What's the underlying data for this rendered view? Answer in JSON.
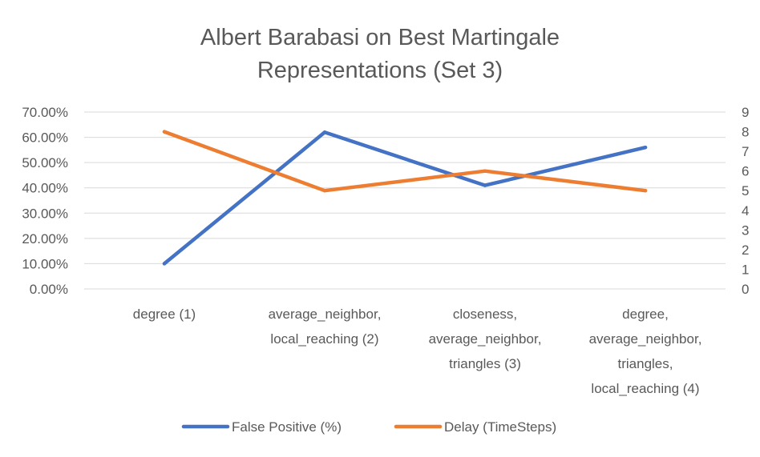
{
  "chart_data": {
    "type": "line",
    "title_lines": [
      "Albert Barabasi on Best Martingale",
      "Representations (Set 3)"
    ],
    "categories": [
      [
        "degree (1)"
      ],
      [
        "average_neighbor,",
        "local_reaching (2)"
      ],
      [
        "closeness,",
        "average_neighbor,",
        "triangles (3)"
      ],
      [
        "degree,",
        "average_neighbor,",
        "triangles,",
        "local_reaching (4)"
      ]
    ],
    "series": [
      {
        "name": "False Positive (%)",
        "axis": "left",
        "color": "#4472c4",
        "values": [
          0.1,
          0.62,
          0.41,
          0.56
        ]
      },
      {
        "name": "Delay (TimeSteps)",
        "axis": "right",
        "color": "#ed7d31",
        "values": [
          8,
          5,
          6,
          5
        ]
      }
    ],
    "left_axis": {
      "min": 0,
      "max": 0.7,
      "ticks": [
        "0.00%",
        "10.00%",
        "20.00%",
        "30.00%",
        "40.00%",
        "50.00%",
        "60.00%",
        "70.00%"
      ]
    },
    "right_axis": {
      "min": 0,
      "max": 9,
      "ticks": [
        "0",
        "1",
        "2",
        "3",
        "4",
        "5",
        "6",
        "7",
        "8",
        "9"
      ]
    },
    "grid": true,
    "legend_position": "bottom"
  }
}
